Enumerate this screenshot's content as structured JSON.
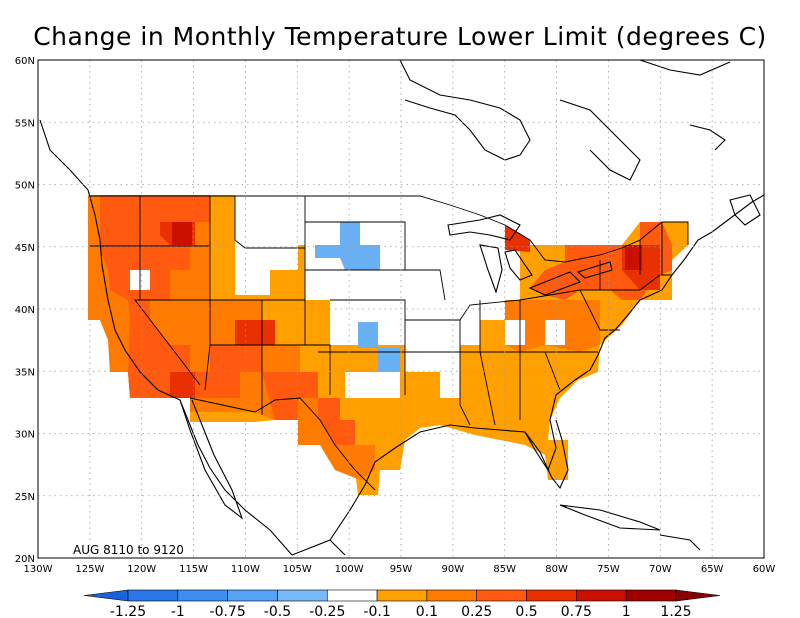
{
  "title": "Change in Monthly Temperature Lower Limit (degrees C)",
  "annotation": "AUG 8110 to 9120",
  "map": {
    "lon_range": [
      -130,
      -60
    ],
    "lat_range": [
      20,
      60
    ],
    "lon_ticks": [
      "130W",
      "125W",
      "120W",
      "115W",
      "110W",
      "105W",
      "100W",
      "95W",
      "90W",
      "85W",
      "80W",
      "75W",
      "70W",
      "65W",
      "60W"
    ],
    "lat_ticks": [
      "20N",
      "25N",
      "30N",
      "35N",
      "40N",
      "45N",
      "50N",
      "55N",
      "60N"
    ]
  },
  "colorbar": {
    "labels": [
      "-1.25",
      "-1",
      "-0.75",
      "-0.5",
      "-0.25",
      "-0.1",
      "0.1",
      "0.25",
      "0.5",
      "0.75",
      "1",
      "1.25"
    ],
    "colors": [
      "#1a62d8",
      "#2a78e8",
      "#3d8ff4",
      "#56a3f7",
      "#78b9fa",
      "#ffffff",
      "#ffa000",
      "#ff7a00",
      "#ff5a10",
      "#e83000",
      "#cc1000",
      "#a00000",
      "#8b0000"
    ]
  },
  "region_colors": {
    "neg2": "#6ab0f5",
    "pos1": "#ffa000",
    "pos2": "#ff7a00",
    "pos3": "#ff5a10",
    "pos4": "#e83000",
    "pos5": "#cc1000"
  }
}
